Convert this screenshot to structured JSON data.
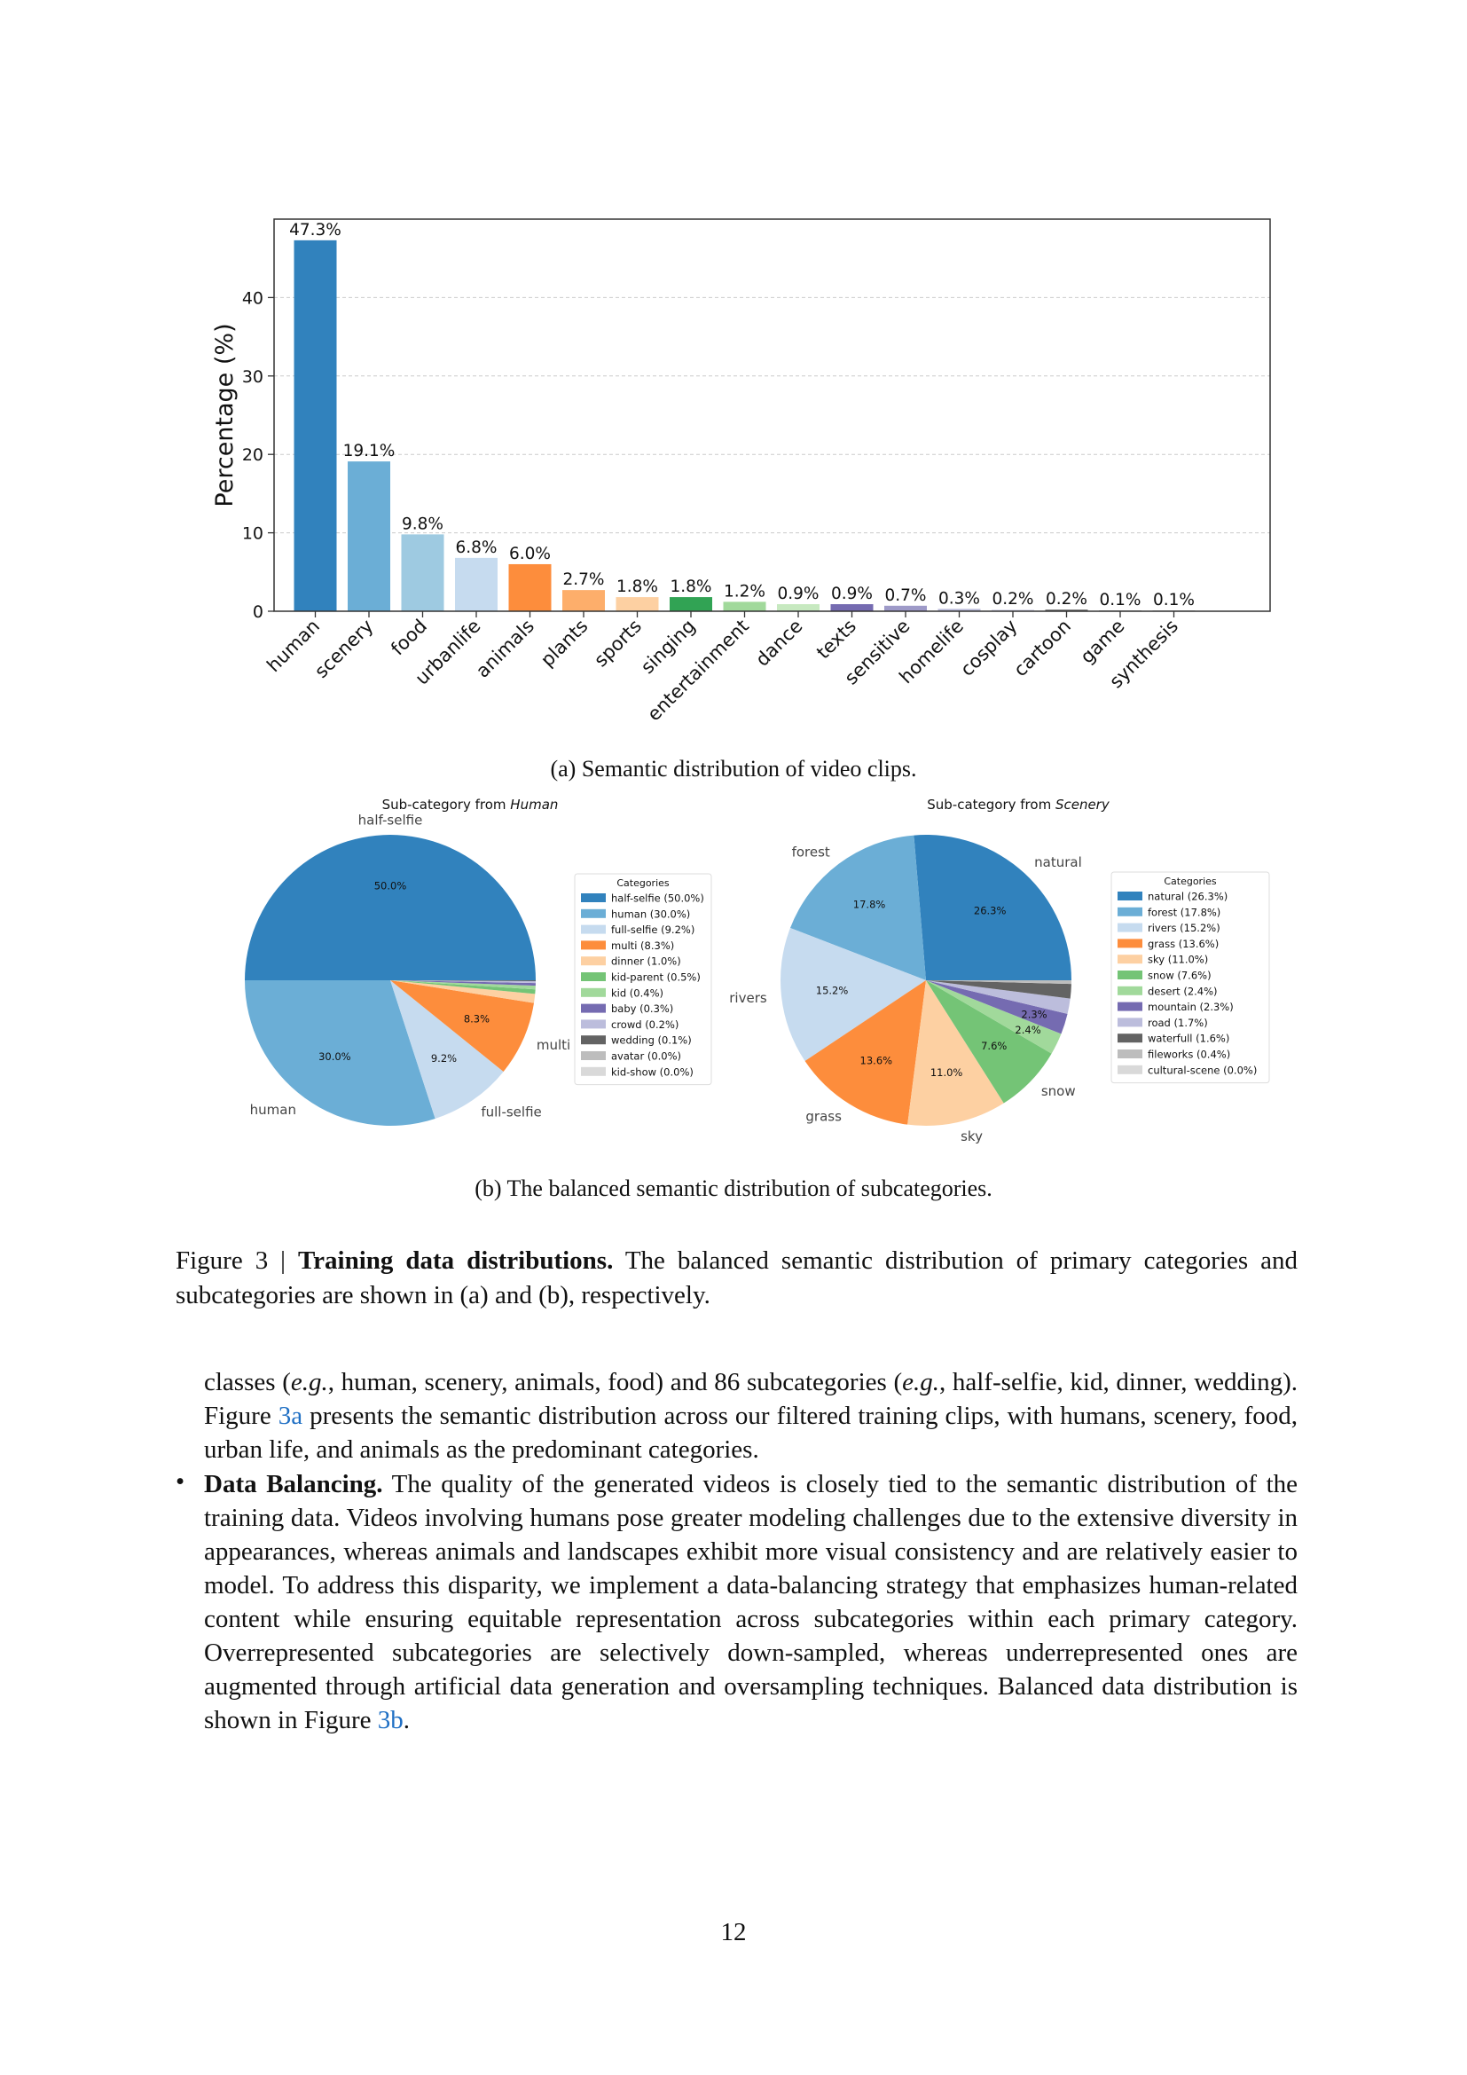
{
  "figure_a": {
    "caption": "(a) Semantic distribution of video clips."
  },
  "figure_b": {
    "caption": "(b) The balanced semantic distribution of subcategories."
  },
  "figure_caption": {
    "label": "Figure 3 | ",
    "title": "Training data distributions.",
    "text": " The balanced semantic distribution of primary categories and subcategories are shown in (a) and (b), respectively."
  },
  "body": {
    "para1_a": "classes (",
    "para1_eg1": "e.g.",
    "para1_b": ", human, scenery, animals, food) and 86 subcategories (",
    "para1_eg2": "e.g.",
    "para1_c": ", half-selfie, kid, dinner, wedding). Figure ",
    "para1_link": "3a",
    "para1_d": " presents the semantic distribution across our filtered training clips, with humans, scenery, food, urban life, and animals as the predominant categories.",
    "bullet_symbol": "•",
    "bullet_title": "Data Balancing.",
    "bullet_text": " The quality of the generated videos is closely tied to the semantic distribution of the training data. Videos involving humans pose greater modeling challenges due to the extensive diversity in appearances, whereas animals and landscapes exhibit more visual consistency and are relatively easier to model. To address this disparity, we implement a data-balancing strategy that emphasizes human-related content while ensuring equitable representation across subcategories within each primary category. Overrepresented subcategories are selectively down-sampled, whereas underrepresented ones are augmented through artificial data generation and oversampling techniques. Balanced data distribution is shown in Figure ",
    "bullet_link": "3b",
    "bullet_end": "."
  },
  "page_number": "12",
  "chart_data": [
    {
      "type": "bar",
      "ylabel": "Percentage (%)",
      "xlabel": "",
      "ylim": [
        0,
        50
      ],
      "yticks": [
        0,
        10,
        20,
        30,
        40
      ],
      "grid": "horizontal dashed",
      "categories": [
        "human",
        "scenery",
        "food",
        "urbanlife",
        "animals",
        "plants",
        "sports",
        "singing",
        "entertainment",
        "dance",
        "texts",
        "sensitive",
        "homelife",
        "cosplay",
        "cartoon",
        "game",
        "synthesis"
      ],
      "values": [
        47.3,
        19.1,
        9.8,
        6.8,
        6.0,
        2.7,
        1.8,
        1.8,
        1.2,
        0.9,
        0.9,
        0.7,
        0.3,
        0.2,
        0.2,
        0.1,
        0.1
      ],
      "value_labels": [
        "47.3%",
        "19.1%",
        "9.8%",
        "6.8%",
        "6.0%",
        "2.7%",
        "1.8%",
        "1.8%",
        "1.2%",
        "0.9%",
        "0.9%",
        "0.7%",
        "0.3%",
        "0.2%",
        "0.2%",
        "0.1%",
        "0.1%"
      ],
      "colors": [
        "#3182bd",
        "#6baed6",
        "#9ecae1",
        "#c6dbef",
        "#fd8d3c",
        "#fdae6b",
        "#fdd0a2",
        "#31a354",
        "#a1d99b",
        "#c7e9c0",
        "#756bb1",
        "#9e9ac8",
        "#bcbddc",
        "#dadaeb",
        "#636363",
        "#969696",
        "#bdbdbd"
      ]
    },
    {
      "type": "pie",
      "title_prefix": "Sub-category from ",
      "title_italic": "Human",
      "legend_title": "Categories",
      "legend_position": "right",
      "labels": [
        "half-selfie",
        "human",
        "full-selfie",
        "multi",
        "dinner",
        "kid-parent",
        "kid",
        "baby",
        "crowd",
        "wedding",
        "avatar",
        "kid-show"
      ],
      "values": [
        50.0,
        30.0,
        9.2,
        8.3,
        1.0,
        0.5,
        0.4,
        0.3,
        0.2,
        0.1,
        0.0,
        0.0
      ],
      "legend_entries": [
        "half-selfie (50.0%)",
        "human (30.0%)",
        "full-selfie (9.2%)",
        "multi (8.3%)",
        "dinner (1.0%)",
        "kid-parent (0.5%)",
        "kid (0.4%)",
        "baby (0.3%)",
        "crowd (0.2%)",
        "wedding (0.1%)",
        "avatar (0.0%)",
        "kid-show (0.0%)"
      ],
      "outer_labels": [
        "half-selfie",
        "human",
        "full-selfie",
        "multi"
      ],
      "pct_labels": [
        "50.0%",
        "30.0%",
        "9.2%",
        "8.3%"
      ],
      "colors": [
        "#3182bd",
        "#6baed6",
        "#c6dbef",
        "#fd8d3c",
        "#fdd0a2",
        "#74c476",
        "#a1d99b",
        "#756bb1",
        "#bcbddc",
        "#636363",
        "#bdbdbd",
        "#d9d9d9"
      ]
    },
    {
      "type": "pie",
      "title_prefix": "Sub-category from ",
      "title_italic": "Scenery",
      "legend_title": "Categories",
      "legend_position": "right",
      "labels": [
        "natural",
        "forest",
        "rivers",
        "grass",
        "sky",
        "snow",
        "desert",
        "mountain",
        "road",
        "waterfull",
        "fileworks",
        "cultural-scene"
      ],
      "values": [
        26.3,
        17.8,
        15.2,
        13.6,
        11.0,
        7.6,
        2.4,
        2.3,
        1.7,
        1.6,
        0.4,
        0.0
      ],
      "legend_entries": [
        "natural (26.3%)",
        "forest (17.8%)",
        "rivers (15.2%)",
        "grass (13.6%)",
        "sky (11.0%)",
        "snow (7.6%)",
        "desert (2.4%)",
        "mountain (2.3%)",
        "road (1.7%)",
        "waterfull (1.6%)",
        "fileworks (0.4%)",
        "cultural-scene (0.0%)"
      ],
      "outer_labels": [
        "natural",
        "forest",
        "rivers",
        "grass",
        "sky",
        "snow"
      ],
      "pct_labels": [
        "26.3%",
        "17.8%",
        "15.2%",
        "13.6%",
        "11.0%",
        "7.6%",
        "2.4%",
        "2.3%"
      ],
      "colors": [
        "#3182bd",
        "#6baed6",
        "#c6dbef",
        "#fd8d3c",
        "#fdd0a2",
        "#74c476",
        "#a1d99b",
        "#756bb1",
        "#bcbddc",
        "#636363",
        "#bdbdbd",
        "#d9d9d9"
      ]
    }
  ]
}
